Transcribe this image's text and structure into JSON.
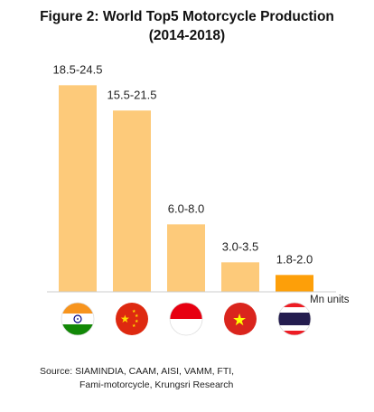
{
  "title_line1": "Figure 2: World Top5 Motorcycle Production",
  "title_line2": "(2014-2018)",
  "unit": "Mn units",
  "source_line1": "Source: SIAMINDIA, CAAM, AISI, VAMM, FTI,",
  "source_line2": "Fami-motorcycle, Krungsri Research",
  "colors": {
    "bar": "#fdca7a",
    "bar_highlight": "#fd9f09"
  },
  "chart_data": {
    "type": "bar",
    "categories": [
      "india-flag",
      "china-flag",
      "indonesia-flag",
      "vietnam-flag",
      "thailand-flag"
    ],
    "labels": [
      "18.5-24.5",
      "15.5-21.5",
      "6.0-8.0",
      "3.0-3.5",
      "1.8-2.0"
    ],
    "values": [
      24.5,
      21.5,
      8.0,
      3.5,
      2.0
    ],
    "highlight_index": 4,
    "ylim": [
      0,
      25.5
    ],
    "grid": false,
    "legend": "none"
  }
}
